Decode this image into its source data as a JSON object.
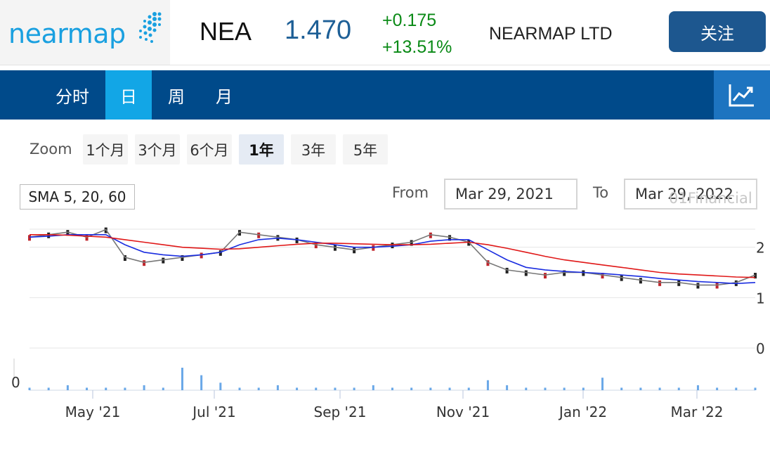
{
  "header": {
    "logo_text": "nearmap",
    "ticker": "NEA",
    "price": "1.470",
    "change": "+0.175",
    "change_pct": "+13.51%",
    "company": "NEARMAP LTD",
    "follow_label": "关注"
  },
  "colors": {
    "brand": "#1aa0e0",
    "nav": "#004a8a",
    "nav_active": "#12a6e6",
    "up": "#0a8a16",
    "sma5": "#777777",
    "sma20": "#1a2de0",
    "sma60": "#e01818",
    "volume": "#6aa8e8"
  },
  "tabs": [
    {
      "label": "分时",
      "active": false
    },
    {
      "label": "日",
      "active": true
    },
    {
      "label": "周",
      "active": false
    },
    {
      "label": "月",
      "active": false
    }
  ],
  "toolbar": {
    "chart_type_icon": "line-chart-icon",
    "zoom_label": "Zoom",
    "zoom_options": [
      {
        "label": "1个月",
        "active": false
      },
      {
        "label": "3个月",
        "active": false
      },
      {
        "label": "6个月",
        "active": false
      },
      {
        "label": "1年",
        "active": true
      },
      {
        "label": "3年",
        "active": false
      },
      {
        "label": "5年",
        "active": false
      }
    ],
    "indicator": "SMA 5, 20, 60",
    "from_label": "From",
    "from_date": "Mar 29, 2021",
    "to_label": "To",
    "to_date": "Mar 29, 2022",
    "watermark": "01Financial"
  },
  "chart_data": {
    "type": "line",
    "x_ticks": [
      "May '21",
      "Jul '21",
      "Sep '21",
      "Nov '21",
      "Jan '22",
      "Mar '22"
    ],
    "y_ticks": [
      "2",
      "1",
      "0"
    ],
    "volume_y_tick": "0",
    "ylim": [
      0,
      3
    ],
    "series": [
      {
        "name": "SMA 5",
        "values": [
          2.2,
          2.25,
          2.3,
          2.2,
          2.35,
          1.8,
          1.7,
          1.75,
          1.8,
          1.85,
          1.9,
          2.3,
          2.25,
          2.2,
          2.15,
          2.05,
          2.0,
          1.95,
          2.0,
          2.05,
          2.1,
          2.25,
          2.2,
          2.1,
          1.7,
          1.55,
          1.5,
          1.45,
          1.5,
          1.5,
          1.45,
          1.4,
          1.35,
          1.3,
          1.3,
          1.25,
          1.25,
          1.3,
          1.45
        ]
      },
      {
        "name": "SMA 20",
        "values": [
          2.2,
          2.22,
          2.25,
          2.25,
          2.25,
          2.05,
          1.9,
          1.85,
          1.82,
          1.85,
          1.9,
          2.05,
          2.15,
          2.18,
          2.15,
          2.1,
          2.05,
          2.0,
          2.0,
          2.02,
          2.05,
          2.12,
          2.15,
          2.15,
          1.95,
          1.75,
          1.6,
          1.55,
          1.52,
          1.5,
          1.48,
          1.45,
          1.42,
          1.38,
          1.35,
          1.32,
          1.3,
          1.28,
          1.3
        ]
      },
      {
        "name": "SMA 60",
        "values": [
          2.25,
          2.25,
          2.24,
          2.22,
          2.2,
          2.15,
          2.1,
          2.05,
          2.0,
          1.98,
          1.96,
          1.97,
          2.0,
          2.03,
          2.06,
          2.08,
          2.08,
          2.07,
          2.06,
          2.05,
          2.05,
          2.06,
          2.08,
          2.1,
          2.05,
          1.98,
          1.9,
          1.82,
          1.75,
          1.7,
          1.65,
          1.6,
          1.55,
          1.5,
          1.47,
          1.45,
          1.43,
          1.41,
          1.4
        ]
      }
    ],
    "volume": [
      1,
      1,
      2,
      1,
      1,
      1,
      2,
      1,
      9,
      6,
      3,
      1,
      1,
      2,
      1,
      1,
      1,
      1,
      2,
      1,
      1,
      1,
      1,
      1,
      4,
      2,
      1,
      1,
      1,
      1,
      5,
      1,
      1,
      1,
      1,
      2,
      1,
      1,
      1
    ]
  }
}
